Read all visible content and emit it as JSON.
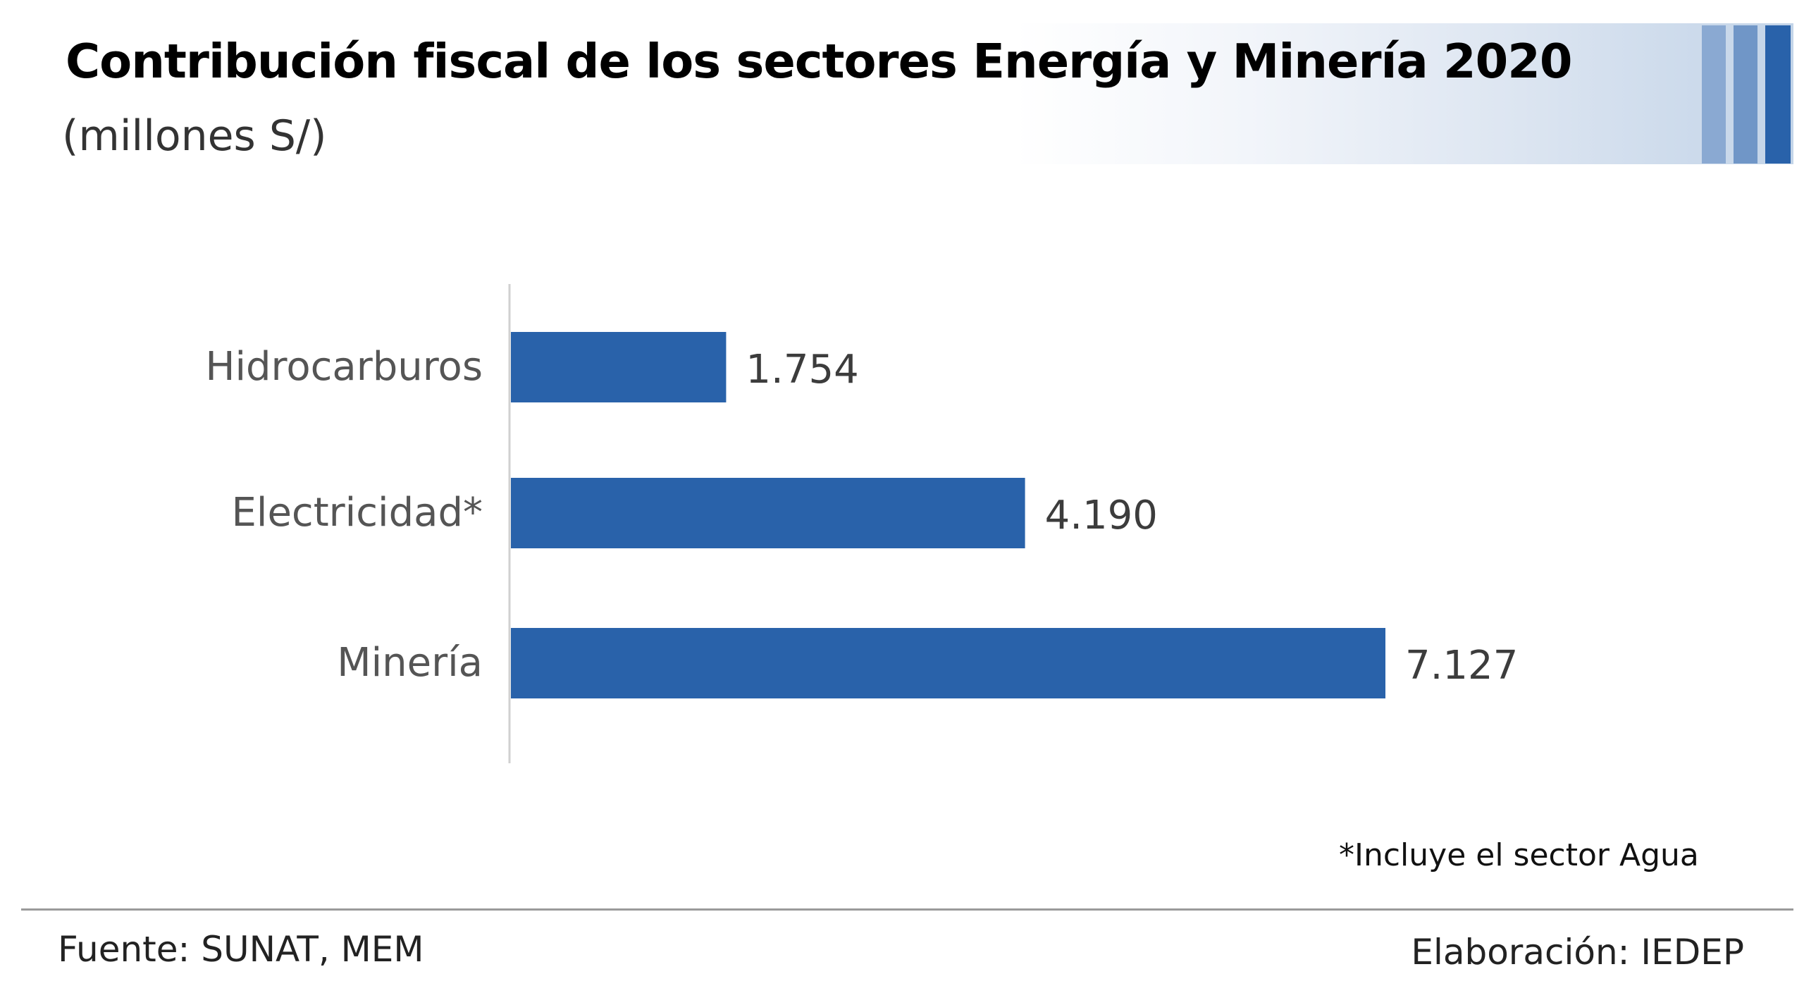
{
  "header": {
    "title": "Contribución fiscal de los sectores Energía y Minería 2020",
    "subtitle": "(millones S/)",
    "accent_colors": [
      "#8aa9d2",
      "#7096c7",
      "#2962aa"
    ]
  },
  "chart_data": {
    "type": "bar",
    "orientation": "horizontal",
    "title": "Contribución fiscal de los sectores Energía y Minería 2020",
    "subtitle": "(millones S/)",
    "xlabel": "",
    "ylabel": "",
    "categories": [
      "Hidrocarburos",
      "Electricidad*",
      "Minería"
    ],
    "values": [
      1754,
      4190,
      7127
    ],
    "value_labels": [
      "1.754",
      "4.190",
      "7.127"
    ],
    "xlim": [
      0,
      7127
    ],
    "grid": false,
    "legend": "none",
    "bar_color": "#2962aa"
  },
  "footnote": "*Incluye el sector Agua",
  "footer": {
    "source": "Fuente: SUNAT, MEM",
    "credit": "Elaboración: IEDEP"
  }
}
